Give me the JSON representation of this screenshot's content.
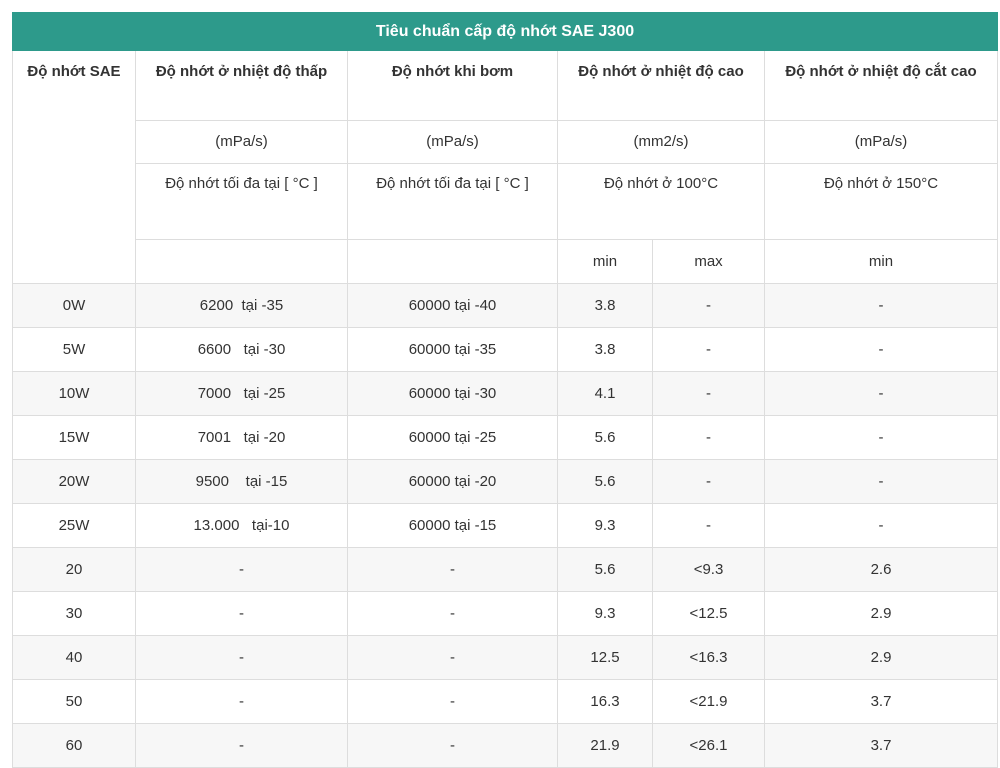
{
  "table": {
    "title": "Tiêu chuẩn cấp độ nhớt SAE J300",
    "headers": [
      "Độ nhớt SAE",
      "Độ nhớt ở nhiệt độ thấp",
      "Độ nhớt khi bơm",
      "Độ nhớt ở nhiệt độ cao",
      "Độ nhớt ở nhiệt độ cắt cao"
    ],
    "units": [
      "(mPa/s)",
      "(mPa/s)",
      "(mm2/s)",
      "(mPa/s)"
    ],
    "descriptions": [
      "Độ nhớt tối đa tại [ °C ]",
      "Độ nhớt tối đa tại [ °C ]",
      "Độ nhớt ở 100°C",
      "Độ nhớt ở 150°C"
    ],
    "subheaders": [
      "min",
      "max",
      "min"
    ],
    "rows": [
      [
        "0W",
        "6200  tại -35",
        "60000 tại -40",
        "3.8",
        "-",
        "-"
      ],
      [
        "5W",
        "6600   tại -30",
        "60000 tại -35",
        "3.8",
        "-",
        "-"
      ],
      [
        "10W",
        "7000   tại -25",
        "60000 tại -30",
        "4.1",
        "-",
        "-"
      ],
      [
        "15W",
        "7001   tại -20",
        "60000 tại -25",
        "5.6",
        "-",
        "-"
      ],
      [
        "20W",
        "9500    tại -15",
        "60000 tại -20",
        "5.6",
        "-",
        "-"
      ],
      [
        "25W",
        "13.000   tại-10",
        "60000 tại -15",
        "9.3",
        "-",
        "-"
      ],
      [
        "20",
        "-",
        "-",
        "5.6",
        "<9.3",
        "2.6"
      ],
      [
        "30",
        "-",
        "-",
        "9.3",
        "<12.5",
        "2.9"
      ],
      [
        "40",
        "-",
        "-",
        "12.5",
        "<16.3",
        "2.9"
      ],
      [
        "50",
        "-",
        "-",
        "16.3",
        "<21.9",
        "3.7"
      ],
      [
        "60",
        "-",
        "-",
        "21.9",
        "<26.1",
        "3.7"
      ]
    ]
  }
}
